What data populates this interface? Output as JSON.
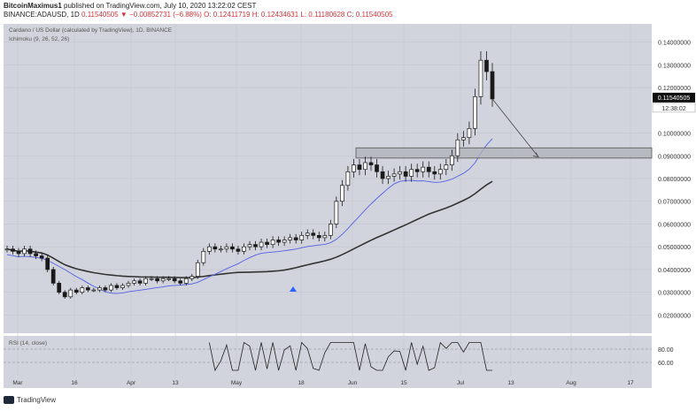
{
  "header": {
    "author": "BitcoinMaximus1",
    "published": "published on TradingView.com, July 10, 2020 13:22:02 CEST",
    "symbol": "BINANCE:ADAUSD, 1D",
    "ohlc_values": "0.11540505 ▼ −0.00852731 (−6.88%) O: 0.12411719 H: 0.12434631 L: 0.11180628 C: 0.11540505"
  },
  "legend": {
    "main": "Cardano / US Dollar (calculated by TradingView), 1D, BINANCE",
    "ichimoku": "Ichimoku (9, 26, 52, 26)",
    "rsi": "RSI (14, close)"
  },
  "footer": {
    "brand": "TradingView"
  },
  "price_label": "0.11540505",
  "countdown_label": "12:38:02",
  "colors": {
    "background": "#d1d4dc",
    "grid": "#c3c6cf",
    "candle": "#1a1a1a",
    "blue_line": "#5560e8",
    "dark_line": "#333333",
    "zone": "#b0b3ba",
    "arrow": "#2962ff"
  },
  "chart_data": {
    "type": "candlestick",
    "y_ticks": [
      0.14,
      0.13,
      0.12,
      0.1,
      0.09,
      0.08,
      0.07,
      0.06,
      0.05,
      0.04,
      0.03,
      0.02
    ],
    "y_tick_labels": [
      "0.14000000",
      "0.13000000",
      "0.12000000",
      "0.10000000",
      "0.09000000",
      "0.08000000",
      "0.07000000",
      "0.06000000",
      "0.05000000",
      "0.04000000",
      "0.03000000",
      "0.02000000"
    ],
    "ylim": [
      0.012,
      0.148
    ],
    "x_labels": [
      "Mar",
      "16",
      "Apr",
      "13",
      "May",
      "18",
      "Jun",
      "15",
      "Jul",
      "13",
      "Aug",
      "17"
    ],
    "approx_close_series": [
      0.049,
      0.048,
      0.047,
      0.049,
      0.047,
      0.046,
      0.045,
      0.04,
      0.034,
      0.03,
      0.028,
      0.031,
      0.03,
      0.032,
      0.031,
      0.031,
      0.032,
      0.031,
      0.033,
      0.032,
      0.033,
      0.034,
      0.035,
      0.034,
      0.036,
      0.036,
      0.035,
      0.036,
      0.036,
      0.035,
      0.034,
      0.036,
      0.037,
      0.043,
      0.048,
      0.05,
      0.049,
      0.049,
      0.05,
      0.049,
      0.048,
      0.05,
      0.051,
      0.05,
      0.052,
      0.051,
      0.053,
      0.052,
      0.053,
      0.054,
      0.053,
      0.055,
      0.056,
      0.055,
      0.054,
      0.055,
      0.06,
      0.07,
      0.077,
      0.083,
      0.086,
      0.084,
      0.087,
      0.086,
      0.083,
      0.08,
      0.081,
      0.082,
      0.083,
      0.081,
      0.084,
      0.083,
      0.085,
      0.083,
      0.082,
      0.084,
      0.086,
      0.09,
      0.097,
      0.098,
      0.102,
      0.116,
      0.132,
      0.127,
      0.115
    ],
    "resistance_zone": [
      0.089,
      0.0935
    ],
    "projection_target": 0.0895,
    "rsi_levels": [
      60,
      80
    ],
    "rsi_tick_labels": [
      "80.00",
      "60.00"
    ]
  }
}
